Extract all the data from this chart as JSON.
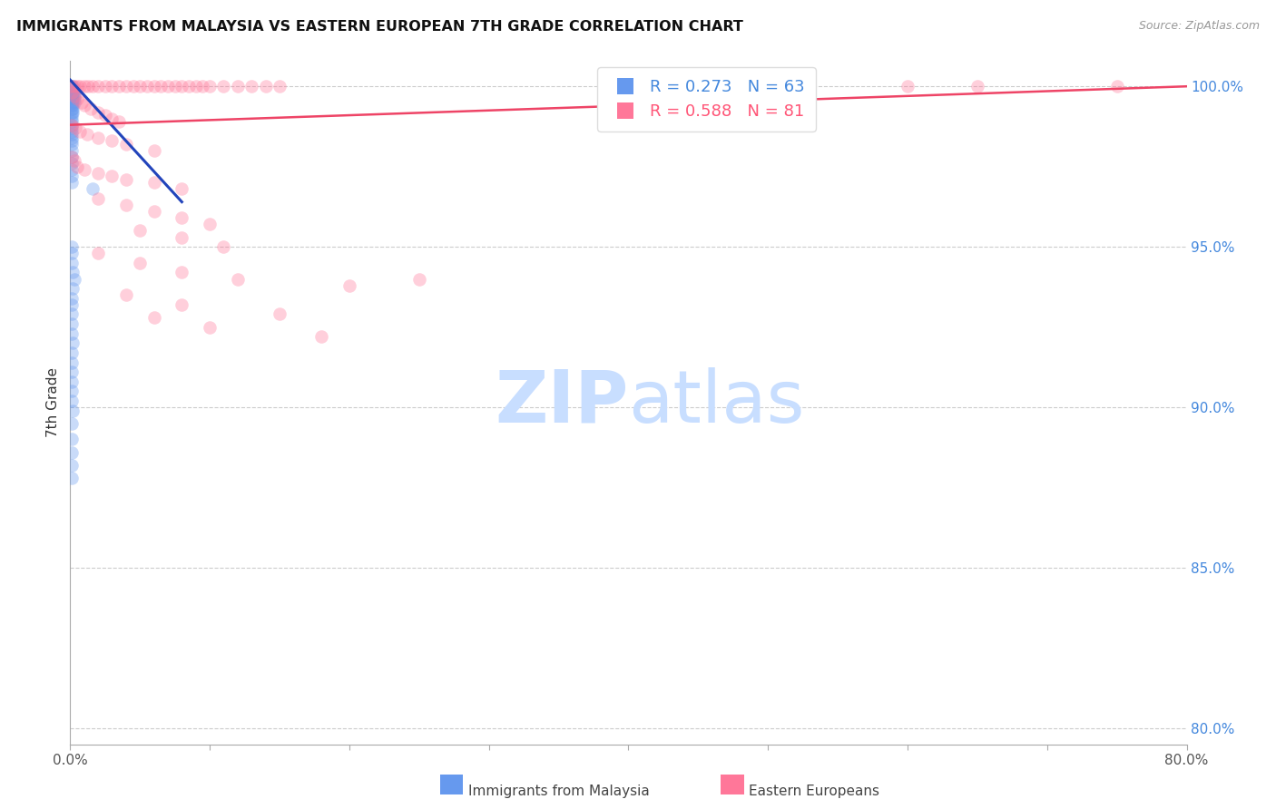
{
  "title": "IMMIGRANTS FROM MALAYSIA VS EASTERN EUROPEAN 7TH GRADE CORRELATION CHART",
  "source": "Source: ZipAtlas.com",
  "ylabel": "7th Grade",
  "legend_label_blue": "Immigrants from Malaysia",
  "legend_label_pink": "Eastern Europeans",
  "color_blue": "#6699EE",
  "color_pink": "#FF7799",
  "color_trend_blue": "#2244BB",
  "color_trend_pink": "#EE4466",
  "xlim": [
    0.0,
    0.8
  ],
  "ylim": [
    0.795,
    1.008
  ],
  "right_yticks": [
    1.0,
    0.95,
    0.9,
    0.85,
    0.8
  ],
  "right_yticklabels": [
    "100.0%",
    "95.0%",
    "90.0%",
    "85.0%",
    "80.0%"
  ],
  "xticks": [
    0.0,
    0.1,
    0.2,
    0.3,
    0.4,
    0.5,
    0.6,
    0.7,
    0.8
  ],
  "xticklabels": [
    "0.0%",
    "",
    "",
    "",
    "",
    "",
    "",
    "",
    "80.0%"
  ],
  "background_color": "#FFFFFF",
  "blue_scatter": [
    [
      0.001,
      1.0
    ],
    [
      0.002,
      1.0
    ],
    [
      0.003,
      0.999
    ],
    [
      0.001,
      0.999
    ],
    [
      0.002,
      0.998
    ],
    [
      0.003,
      0.998
    ],
    [
      0.001,
      0.998
    ],
    [
      0.002,
      0.997
    ],
    [
      0.003,
      0.997
    ],
    [
      0.001,
      0.997
    ],
    [
      0.002,
      0.996
    ],
    [
      0.003,
      0.996
    ],
    [
      0.001,
      0.996
    ],
    [
      0.002,
      0.995
    ],
    [
      0.003,
      0.995
    ],
    [
      0.001,
      0.995
    ],
    [
      0.002,
      0.994
    ],
    [
      0.001,
      0.994
    ],
    [
      0.001,
      0.993
    ],
    [
      0.002,
      0.993
    ],
    [
      0.001,
      0.992
    ],
    [
      0.002,
      0.992
    ],
    [
      0.001,
      0.991
    ],
    [
      0.001,
      0.99
    ],
    [
      0.001,
      0.989
    ],
    [
      0.001,
      0.988
    ],
    [
      0.001,
      0.987
    ],
    [
      0.001,
      0.986
    ],
    [
      0.001,
      0.985
    ],
    [
      0.001,
      0.984
    ],
    [
      0.001,
      0.983
    ],
    [
      0.001,
      0.982
    ],
    [
      0.001,
      0.98
    ],
    [
      0.001,
      0.978
    ],
    [
      0.001,
      0.976
    ],
    [
      0.001,
      0.974
    ],
    [
      0.001,
      0.972
    ],
    [
      0.001,
      0.97
    ],
    [
      0.016,
      0.968
    ],
    [
      0.001,
      0.95
    ],
    [
      0.001,
      0.948
    ],
    [
      0.001,
      0.945
    ],
    [
      0.002,
      0.942
    ],
    [
      0.003,
      0.94
    ],
    [
      0.002,
      0.937
    ],
    [
      0.001,
      0.934
    ],
    [
      0.001,
      0.932
    ],
    [
      0.001,
      0.929
    ],
    [
      0.001,
      0.926
    ],
    [
      0.001,
      0.923
    ],
    [
      0.002,
      0.92
    ],
    [
      0.001,
      0.917
    ],
    [
      0.001,
      0.914
    ],
    [
      0.001,
      0.911
    ],
    [
      0.001,
      0.908
    ],
    [
      0.001,
      0.905
    ],
    [
      0.001,
      0.902
    ],
    [
      0.002,
      0.899
    ],
    [
      0.001,
      0.895
    ],
    [
      0.001,
      0.89
    ],
    [
      0.001,
      0.886
    ],
    [
      0.001,
      0.882
    ],
    [
      0.001,
      0.878
    ]
  ],
  "pink_scatter": [
    [
      0.001,
      1.0
    ],
    [
      0.003,
      1.0
    ],
    [
      0.005,
      1.0
    ],
    [
      0.007,
      1.0
    ],
    [
      0.01,
      1.0
    ],
    [
      0.013,
      1.0
    ],
    [
      0.016,
      1.0
    ],
    [
      0.02,
      1.0
    ],
    [
      0.025,
      1.0
    ],
    [
      0.03,
      1.0
    ],
    [
      0.035,
      1.0
    ],
    [
      0.04,
      1.0
    ],
    [
      0.045,
      1.0
    ],
    [
      0.05,
      1.0
    ],
    [
      0.055,
      1.0
    ],
    [
      0.06,
      1.0
    ],
    [
      0.065,
      1.0
    ],
    [
      0.07,
      1.0
    ],
    [
      0.075,
      1.0
    ],
    [
      0.08,
      1.0
    ],
    [
      0.085,
      1.0
    ],
    [
      0.09,
      1.0
    ],
    [
      0.095,
      1.0
    ],
    [
      0.1,
      1.0
    ],
    [
      0.11,
      1.0
    ],
    [
      0.12,
      1.0
    ],
    [
      0.13,
      1.0
    ],
    [
      0.14,
      1.0
    ],
    [
      0.15,
      1.0
    ],
    [
      0.6,
      1.0
    ],
    [
      0.65,
      1.0
    ],
    [
      0.75,
      1.0
    ],
    [
      0.001,
      0.998
    ],
    [
      0.003,
      0.997
    ],
    [
      0.005,
      0.996
    ],
    [
      0.008,
      0.995
    ],
    [
      0.01,
      0.994
    ],
    [
      0.015,
      0.993
    ],
    [
      0.02,
      0.992
    ],
    [
      0.025,
      0.991
    ],
    [
      0.03,
      0.99
    ],
    [
      0.035,
      0.989
    ],
    [
      0.001,
      0.988
    ],
    [
      0.004,
      0.987
    ],
    [
      0.007,
      0.986
    ],
    [
      0.012,
      0.985
    ],
    [
      0.02,
      0.984
    ],
    [
      0.03,
      0.983
    ],
    [
      0.04,
      0.982
    ],
    [
      0.06,
      0.98
    ],
    [
      0.001,
      0.978
    ],
    [
      0.003,
      0.977
    ],
    [
      0.005,
      0.975
    ],
    [
      0.01,
      0.974
    ],
    [
      0.02,
      0.973
    ],
    [
      0.03,
      0.972
    ],
    [
      0.04,
      0.971
    ],
    [
      0.06,
      0.97
    ],
    [
      0.08,
      0.968
    ],
    [
      0.02,
      0.965
    ],
    [
      0.04,
      0.963
    ],
    [
      0.06,
      0.961
    ],
    [
      0.08,
      0.959
    ],
    [
      0.1,
      0.957
    ],
    [
      0.05,
      0.955
    ],
    [
      0.08,
      0.953
    ],
    [
      0.11,
      0.95
    ],
    [
      0.02,
      0.948
    ],
    [
      0.05,
      0.945
    ],
    [
      0.08,
      0.942
    ],
    [
      0.12,
      0.94
    ],
    [
      0.2,
      0.938
    ],
    [
      0.04,
      0.935
    ],
    [
      0.08,
      0.932
    ],
    [
      0.15,
      0.929
    ],
    [
      0.06,
      0.928
    ],
    [
      0.1,
      0.925
    ],
    [
      0.18,
      0.922
    ],
    [
      0.25,
      0.94
    ]
  ],
  "blue_trend_x": [
    0.0,
    0.08
  ],
  "blue_trend_y": [
    1.002,
    0.964
  ],
  "pink_trend_x": [
    0.0,
    0.8
  ],
  "pink_trend_y": [
    0.988,
    1.0
  ]
}
